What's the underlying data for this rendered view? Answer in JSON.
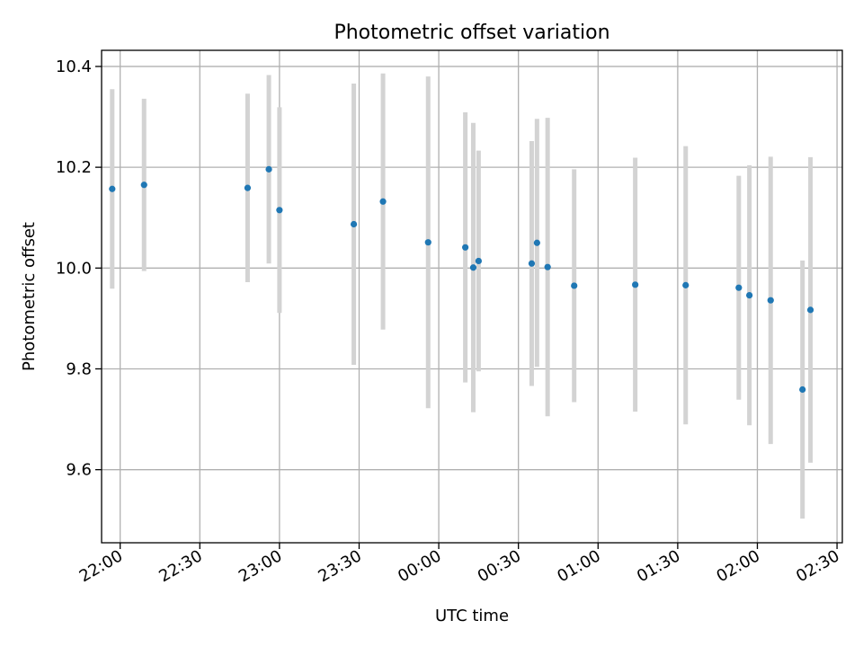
{
  "chart_data": {
    "type": "scatter",
    "title": "Photometric offset variation",
    "xlabel": "UTC time",
    "ylabel": "Photometric offset",
    "x_ticks": [
      "22:00",
      "22:30",
      "23:00",
      "23:30",
      "00:00",
      "00:30",
      "01:00",
      "01:30",
      "02:00",
      "02:30"
    ],
    "y_ticks": [
      "9.6",
      "9.8",
      "10.0",
      "10.2",
      "10.4"
    ],
    "xlim": [
      "21:53",
      "02:32"
    ],
    "ylim": [
      9.455,
      10.432
    ],
    "grid": true,
    "marker_color": "#1f77b4",
    "errorbar_color": "#d3d3d3",
    "points": [
      {
        "x": "21:57",
        "y": 10.157,
        "err": 0.198
      },
      {
        "x": "22:09",
        "y": 10.165,
        "err": 0.171
      },
      {
        "x": "22:48",
        "y": 10.159,
        "err": 0.187
      },
      {
        "x": "22:56",
        "y": 10.196,
        "err": 0.187
      },
      {
        "x": "23:00",
        "y": 10.115,
        "err": 0.204
      },
      {
        "x": "23:28",
        "y": 10.087,
        "err": 0.279
      },
      {
        "x": "23:39",
        "y": 10.132,
        "err": 0.254
      },
      {
        "x": "23:56",
        "y": 10.051,
        "err": 0.329
      },
      {
        "x": "00:10",
        "y": 10.041,
        "err": 0.268
      },
      {
        "x": "00:13",
        "y": 10.001,
        "err": 0.287
      },
      {
        "x": "00:15",
        "y": 10.014,
        "err": 0.219
      },
      {
        "x": "00:35",
        "y": 10.009,
        "err": 0.243
      },
      {
        "x": "00:37",
        "y": 10.05,
        "err": 0.246
      },
      {
        "x": "00:41",
        "y": 10.002,
        "err": 0.296
      },
      {
        "x": "00:51",
        "y": 9.965,
        "err": 0.231
      },
      {
        "x": "01:14",
        "y": 9.967,
        "err": 0.252
      },
      {
        "x": "01:33",
        "y": 9.966,
        "err": 0.276
      },
      {
        "x": "01:53",
        "y": 9.961,
        "err": 0.222
      },
      {
        "x": "01:57",
        "y": 9.946,
        "err": 0.258
      },
      {
        "x": "02:05",
        "y": 9.936,
        "err": 0.285
      },
      {
        "x": "02:17",
        "y": 9.759,
        "err": 0.256
      },
      {
        "x": "02:20",
        "y": 9.917,
        "err": 0.303
      }
    ]
  }
}
